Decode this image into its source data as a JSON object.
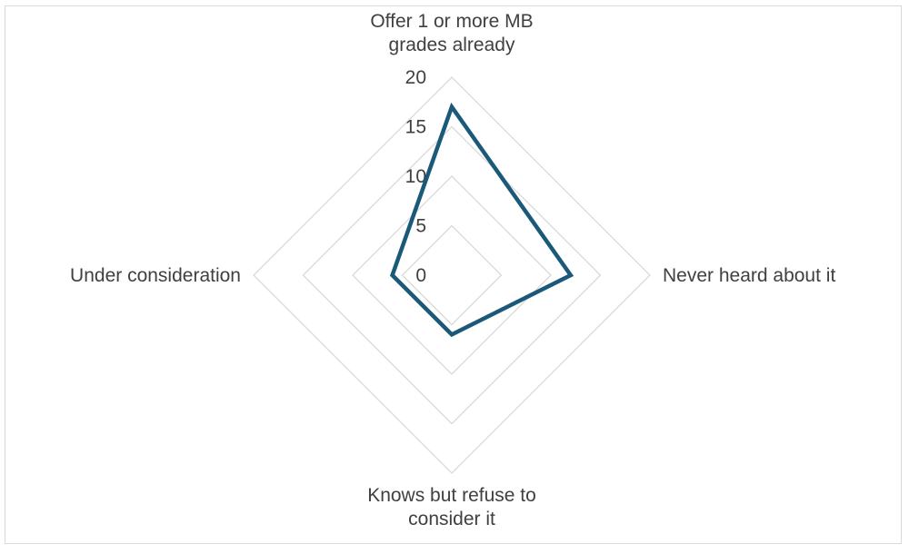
{
  "chart_data": {
    "type": "radar",
    "categories": [
      [
        "Offer 1 or more MB",
        "grades already"
      ],
      [
        "Never heard about it"
      ],
      [
        "Knows but refuse to",
        "consider it"
      ],
      [
        "Under consideration"
      ]
    ],
    "series": [
      {
        "values": [
          17,
          12,
          6,
          6
        ],
        "color": "#1a5a78"
      }
    ],
    "rlim": [
      0,
      20
    ],
    "ticks": [
      "0",
      "5",
      "10",
      "15",
      "20"
    ],
    "tick_values": [
      0,
      5,
      10,
      15,
      20
    ],
    "gridline_color": "#d9d9d9",
    "legend": "none"
  }
}
